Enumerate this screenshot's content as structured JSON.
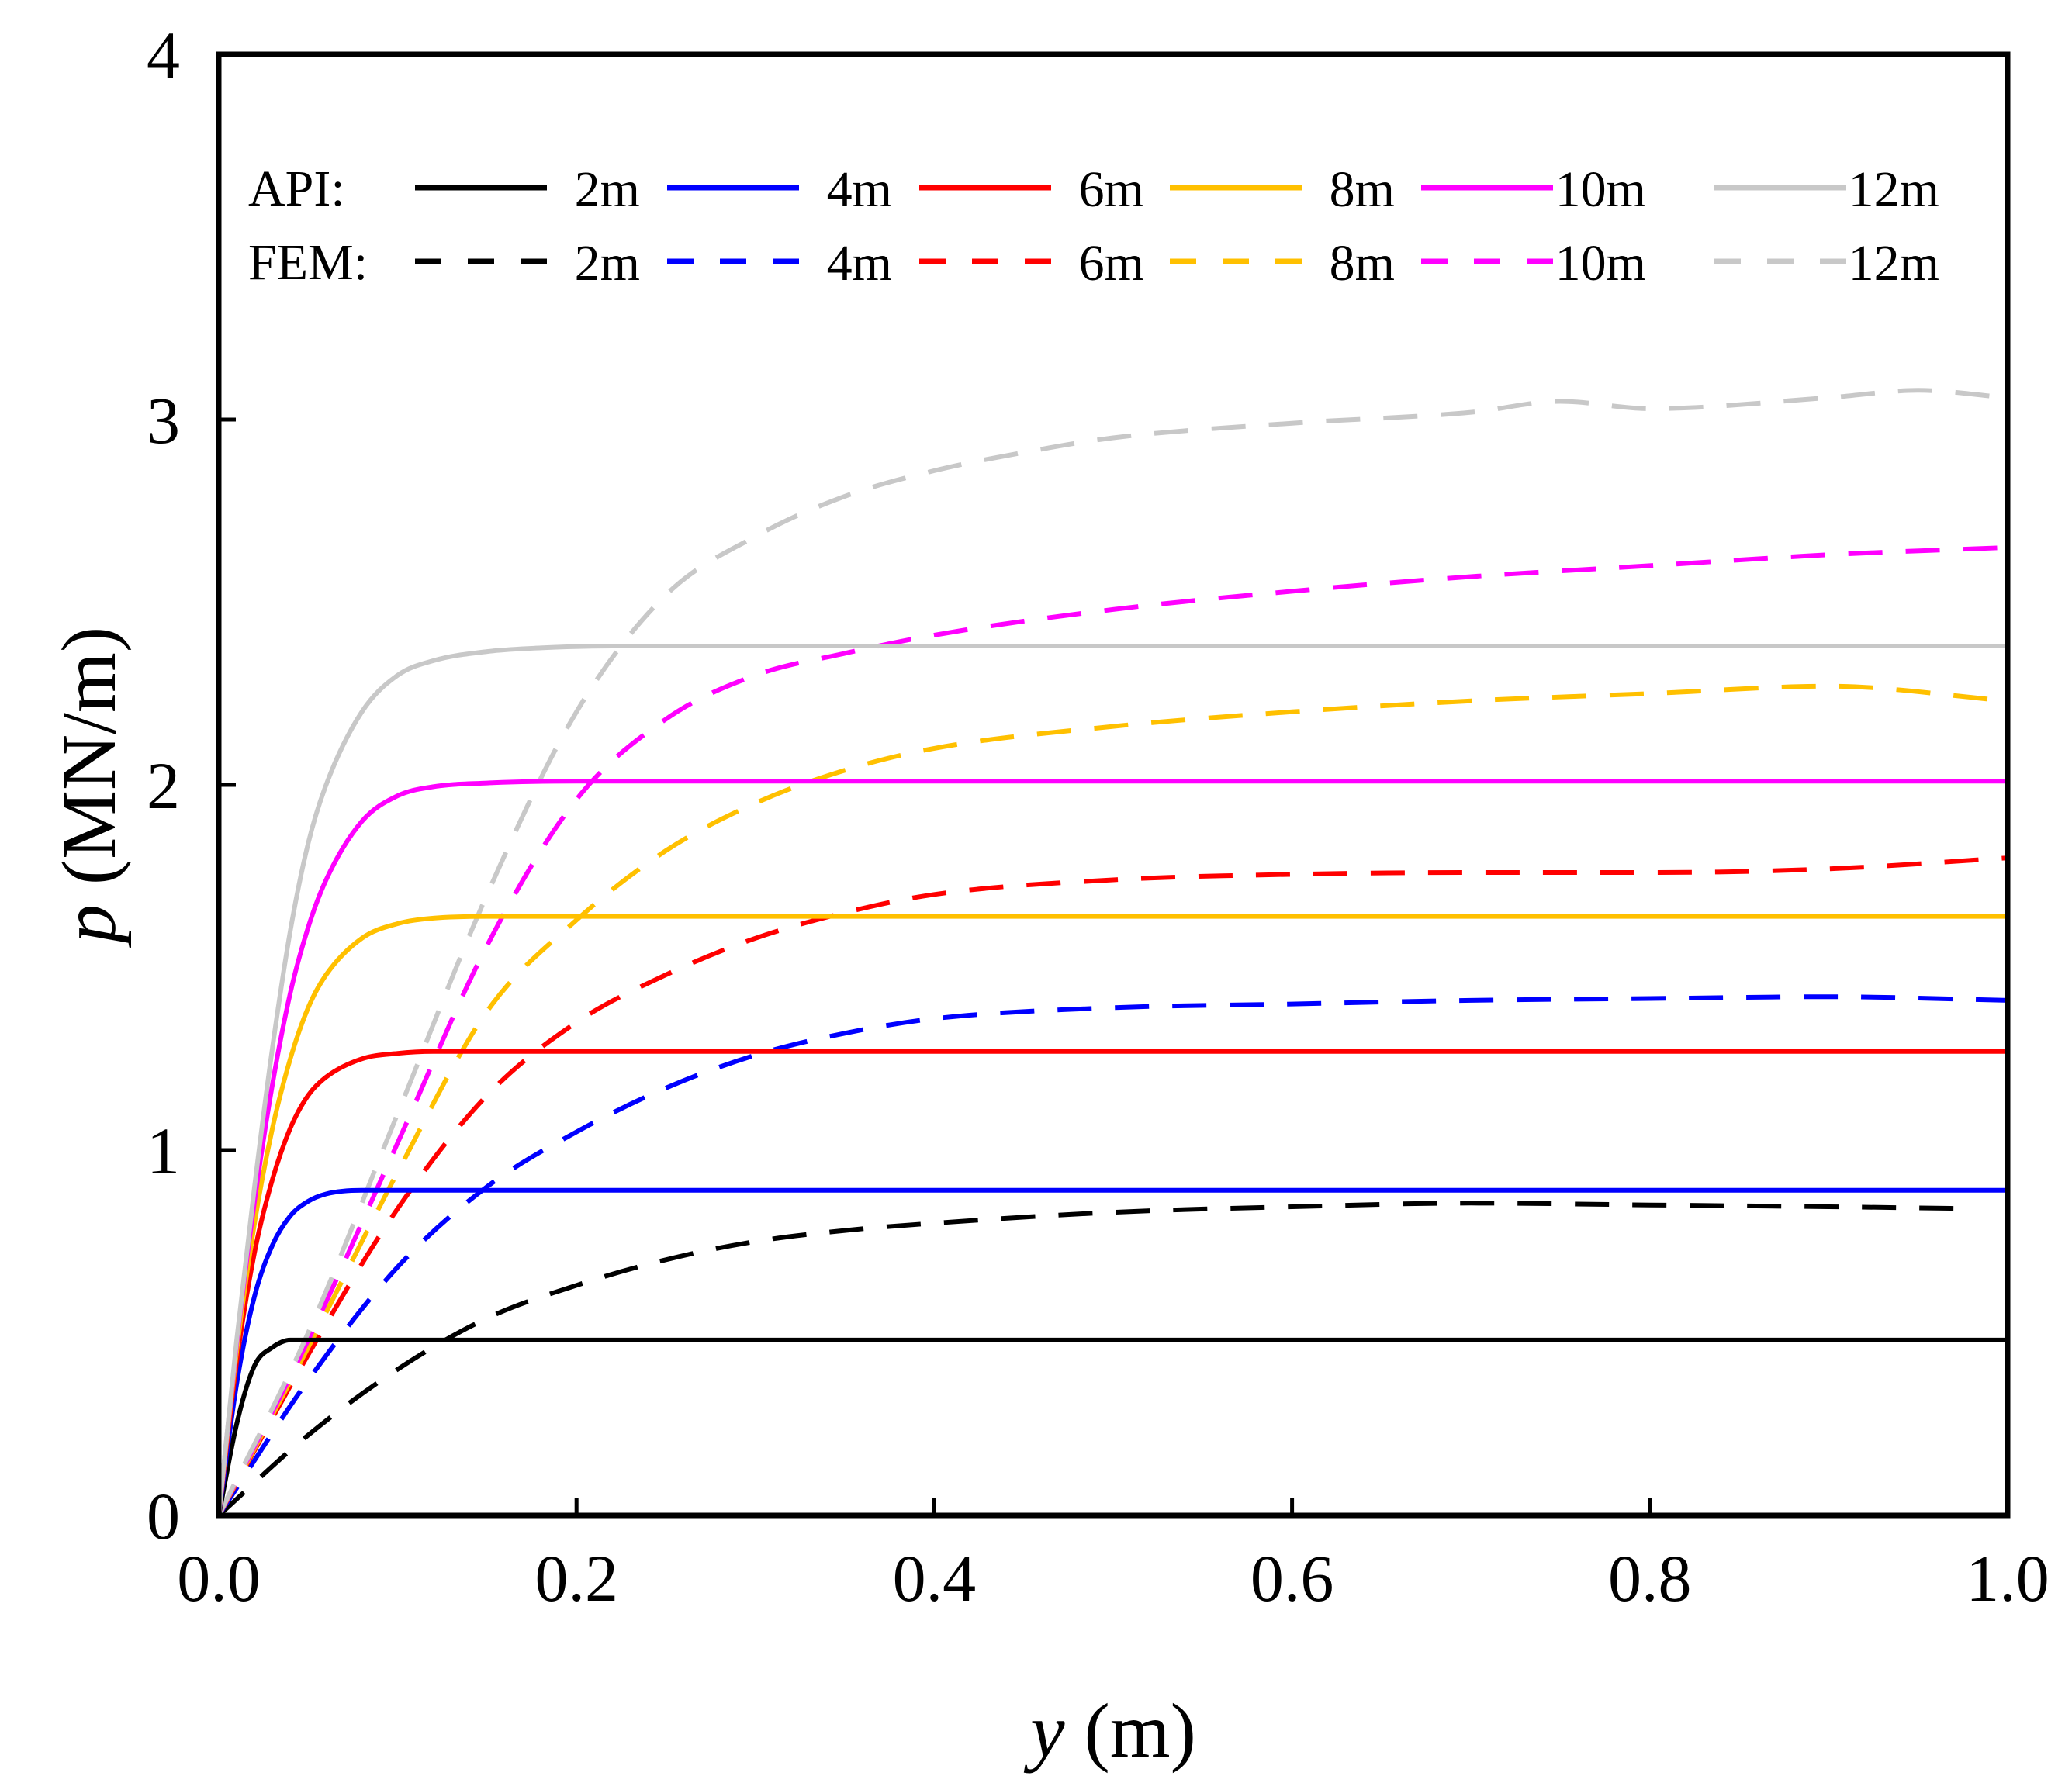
{
  "chart_data": {
    "type": "line",
    "title": "",
    "xlabel": {
      "var": "y",
      "unit": "(m)"
    },
    "ylabel": {
      "var": "p",
      "unit": "(MN/m)"
    },
    "xlim": [
      0,
      1.0
    ],
    "ylim": [
      0,
      4
    ],
    "xticks": [
      0,
      0.2,
      0.4,
      0.6,
      0.8,
      1.0
    ],
    "xtick_labels": [
      "0.0",
      "0.2",
      "0.4",
      "0.6",
      "0.8",
      "1.0"
    ],
    "yticks": [
      0,
      1,
      2,
      3,
      4
    ],
    "ytick_labels": [
      "0",
      "1",
      "2",
      "3",
      "4"
    ],
    "grid": false,
    "legend": {
      "position": "top",
      "rows": [
        {
          "label": "API:",
          "style": "solid"
        },
        {
          "label": "FEM:",
          "style": "dashed"
        }
      ],
      "entries": [
        "2m",
        "4m",
        "6m",
        "8m",
        "10m",
        "12m"
      ]
    },
    "series": [
      {
        "group": "API",
        "depth": "2m",
        "color": "#000000",
        "style": "solid",
        "x": [
          0,
          0.01,
          0.02,
          0.03,
          0.04,
          0.06,
          0.1,
          1.0
        ],
        "y": [
          0,
          0.25,
          0.41,
          0.46,
          0.48,
          0.48,
          0.48,
          0.48
        ]
      },
      {
        "group": "API",
        "depth": "4m",
        "color": "#0000ff",
        "style": "solid",
        "x": [
          0,
          0.01,
          0.02,
          0.03,
          0.04,
          0.05,
          0.06,
          0.08,
          0.12,
          1.0
        ],
        "y": [
          0,
          0.36,
          0.6,
          0.74,
          0.82,
          0.86,
          0.88,
          0.89,
          0.89,
          0.89
        ]
      },
      {
        "group": "API",
        "depth": "6m",
        "color": "#ff0000",
        "style": "solid",
        "x": [
          0,
          0.01,
          0.02,
          0.03,
          0.04,
          0.05,
          0.06,
          0.08,
          0.1,
          0.12,
          0.2,
          1.0
        ],
        "y": [
          0,
          0.42,
          0.72,
          0.92,
          1.06,
          1.15,
          1.2,
          1.25,
          1.265,
          1.27,
          1.27,
          1.27
        ]
      },
      {
        "group": "API",
        "depth": "8m",
        "color": "#ffc000",
        "style": "solid",
        "x": [
          0,
          0.01,
          0.02,
          0.03,
          0.04,
          0.05,
          0.06,
          0.08,
          0.1,
          0.12,
          0.15,
          0.2,
          1.0
        ],
        "y": [
          0,
          0.45,
          0.8,
          1.06,
          1.25,
          1.39,
          1.48,
          1.58,
          1.62,
          1.635,
          1.64,
          1.64,
          1.64
        ]
      },
      {
        "group": "API",
        "depth": "10m",
        "color": "#ff00ff",
        "style": "solid",
        "x": [
          0,
          0.01,
          0.02,
          0.03,
          0.04,
          0.05,
          0.06,
          0.08,
          0.1,
          0.12,
          0.15,
          0.2,
          1.0
        ],
        "y": [
          0,
          0.47,
          0.86,
          1.18,
          1.43,
          1.61,
          1.74,
          1.9,
          1.97,
          1.995,
          2.005,
          2.01,
          2.01
        ]
      },
      {
        "group": "API",
        "depth": "12m",
        "color": "#c8c8c8",
        "style": "solid",
        "x": [
          0,
          0.01,
          0.02,
          0.03,
          0.04,
          0.05,
          0.06,
          0.08,
          0.1,
          0.12,
          0.15,
          0.18,
          0.22,
          0.3,
          1.0
        ],
        "y": [
          0,
          0.48,
          0.9,
          1.28,
          1.6,
          1.84,
          2.0,
          2.2,
          2.3,
          2.34,
          2.365,
          2.375,
          2.38,
          2.38,
          2.38
        ]
      },
      {
        "group": "FEM",
        "depth": "2m",
        "color": "#000000",
        "style": "dashed",
        "x": [
          0,
          0.05,
          0.1,
          0.15,
          0.2,
          0.25,
          0.3,
          0.35,
          0.4,
          0.5,
          0.6,
          0.7,
          0.8,
          0.9,
          0.98
        ],
        "y": [
          0,
          0.22,
          0.4,
          0.54,
          0.63,
          0.7,
          0.75,
          0.78,
          0.8,
          0.83,
          0.845,
          0.855,
          0.85,
          0.845,
          0.84
        ]
      },
      {
        "group": "FEM",
        "depth": "4m",
        "color": "#0000ff",
        "style": "dashed",
        "x": [
          0,
          0.05,
          0.1,
          0.15,
          0.2,
          0.25,
          0.3,
          0.35,
          0.4,
          0.5,
          0.6,
          0.7,
          0.8,
          0.9,
          1.0
        ],
        "y": [
          0,
          0.37,
          0.68,
          0.9,
          1.05,
          1.17,
          1.26,
          1.32,
          1.36,
          1.39,
          1.4,
          1.41,
          1.415,
          1.42,
          1.41
        ]
      },
      {
        "group": "FEM",
        "depth": "6m",
        "color": "#ff0000",
        "style": "dashed",
        "x": [
          0,
          0.05,
          0.1,
          0.15,
          0.2,
          0.25,
          0.3,
          0.35,
          0.4,
          0.5,
          0.6,
          0.7,
          0.8,
          0.9,
          1.0
        ],
        "y": [
          0,
          0.44,
          0.84,
          1.15,
          1.35,
          1.48,
          1.58,
          1.65,
          1.7,
          1.74,
          1.755,
          1.76,
          1.76,
          1.77,
          1.8
        ]
      },
      {
        "group": "FEM",
        "depth": "8m",
        "color": "#ffc000",
        "style": "dashed",
        "x": [
          0,
          0.05,
          0.1,
          0.15,
          0.2,
          0.25,
          0.3,
          0.35,
          0.4,
          0.5,
          0.6,
          0.7,
          0.8,
          0.9,
          1.0
        ],
        "y": [
          0,
          0.46,
          0.94,
          1.38,
          1.63,
          1.82,
          1.95,
          2.04,
          2.1,
          2.16,
          2.2,
          2.23,
          2.25,
          2.27,
          2.23
        ]
      },
      {
        "group": "FEM",
        "depth": "10m",
        "color": "#ff00ff",
        "style": "dashed",
        "x": [
          0,
          0.05,
          0.1,
          0.15,
          0.2,
          0.25,
          0.3,
          0.35,
          0.4,
          0.5,
          0.6,
          0.7,
          0.8,
          0.9,
          1.0
        ],
        "y": [
          0,
          0.48,
          1.02,
          1.56,
          1.96,
          2.18,
          2.3,
          2.36,
          2.41,
          2.48,
          2.53,
          2.57,
          2.6,
          2.63,
          2.65
        ]
      },
      {
        "group": "FEM",
        "depth": "12m",
        "color": "#c8c8c8",
        "style": "dashed",
        "x": [
          0,
          0.05,
          0.1,
          0.15,
          0.2,
          0.25,
          0.3,
          0.35,
          0.4,
          0.45,
          0.5,
          0.6,
          0.7,
          0.75,
          0.8,
          0.9,
          0.95,
          1.0
        ],
        "y": [
          0,
          0.5,
          1.1,
          1.7,
          2.2,
          2.52,
          2.68,
          2.79,
          2.86,
          2.91,
          2.95,
          2.99,
          3.02,
          3.05,
          3.03,
          3.06,
          3.08,
          3.06
        ]
      }
    ]
  }
}
